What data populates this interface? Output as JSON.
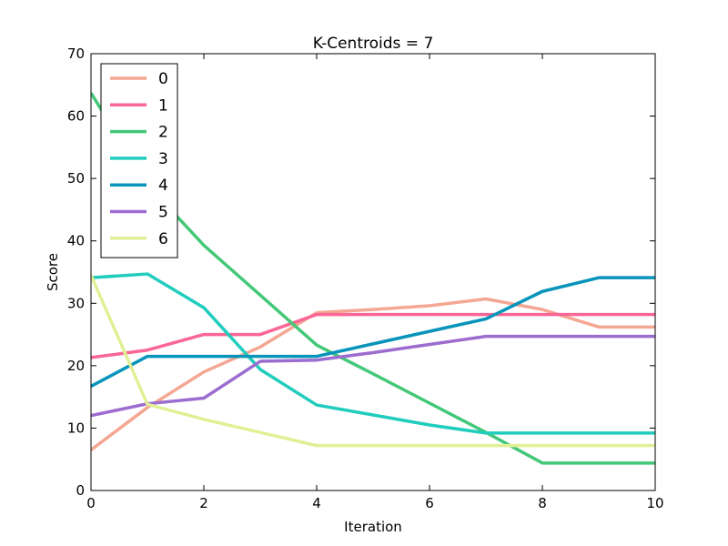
{
  "chart_data": {
    "type": "line",
    "title": "K-Centroids = 7",
    "xlabel": "Iteration",
    "ylabel": "Score",
    "xlim": [
      0,
      10
    ],
    "ylim": [
      0,
      70
    ],
    "xticks": [
      0,
      2,
      4,
      6,
      8,
      10
    ],
    "yticks": [
      0,
      10,
      20,
      30,
      40,
      50,
      60,
      70
    ],
    "grid": false,
    "legend_position": "top-left",
    "series": [
      {
        "name": "0",
        "color": "#f4a792",
        "x": [
          0,
          1,
          2,
          3,
          4,
          5,
          6,
          7,
          8,
          9,
          10
        ],
        "y": [
          6.5,
          13.3,
          19.0,
          23.0,
          28.5,
          29.0,
          29.6,
          30.7,
          29.0,
          26.2,
          26.2
        ]
      },
      {
        "name": "1",
        "color": "#fa6695",
        "x": [
          0,
          1,
          2,
          3,
          4,
          5,
          6,
          7,
          8,
          9,
          10
        ],
        "y": [
          21.3,
          22.5,
          25.0,
          25.0,
          28.2,
          28.2,
          28.2,
          28.2,
          28.2,
          28.2,
          28.2
        ]
      },
      {
        "name": "2",
        "color": "#44c878",
        "x": [
          0,
          1,
          2,
          3,
          4,
          5,
          6,
          7,
          8,
          9,
          10
        ],
        "y": [
          63.7,
          49.0,
          39.3,
          31.3,
          23.3,
          18.7,
          14.0,
          9.3,
          4.4,
          4.4,
          4.4
        ]
      },
      {
        "name": "3",
        "color": "#21cdbd",
        "x": [
          0,
          1,
          2,
          3,
          4,
          5,
          6,
          7,
          8,
          9,
          10
        ],
        "y": [
          34.1,
          34.7,
          29.3,
          19.4,
          13.7,
          12.1,
          10.5,
          9.2,
          9.2,
          9.2,
          9.2
        ]
      },
      {
        "name": "4",
        "color": "#0894bb",
        "x": [
          0,
          1,
          2,
          3,
          4,
          5,
          6,
          7,
          8,
          9,
          10
        ],
        "y": [
          16.7,
          21.5,
          21.5,
          21.5,
          21.5,
          23.5,
          25.5,
          27.5,
          31.9,
          34.1,
          34.1
        ]
      },
      {
        "name": "5",
        "color": "#9c6ccf",
        "x": [
          0,
          1,
          2,
          3,
          4,
          5,
          6,
          7,
          8,
          9,
          10
        ],
        "y": [
          12.0,
          13.9,
          14.8,
          20.7,
          20.9,
          22.1,
          23.4,
          24.7,
          24.7,
          24.7,
          24.7
        ]
      },
      {
        "name": "6",
        "color": "#e1f095",
        "x": [
          0,
          1,
          2,
          3,
          4,
          5,
          6,
          7,
          8,
          9,
          10
        ],
        "y": [
          34.5,
          13.8,
          11.4,
          9.3,
          7.2,
          7.2,
          7.2,
          7.2,
          7.2,
          7.2,
          7.2
        ]
      }
    ]
  }
}
